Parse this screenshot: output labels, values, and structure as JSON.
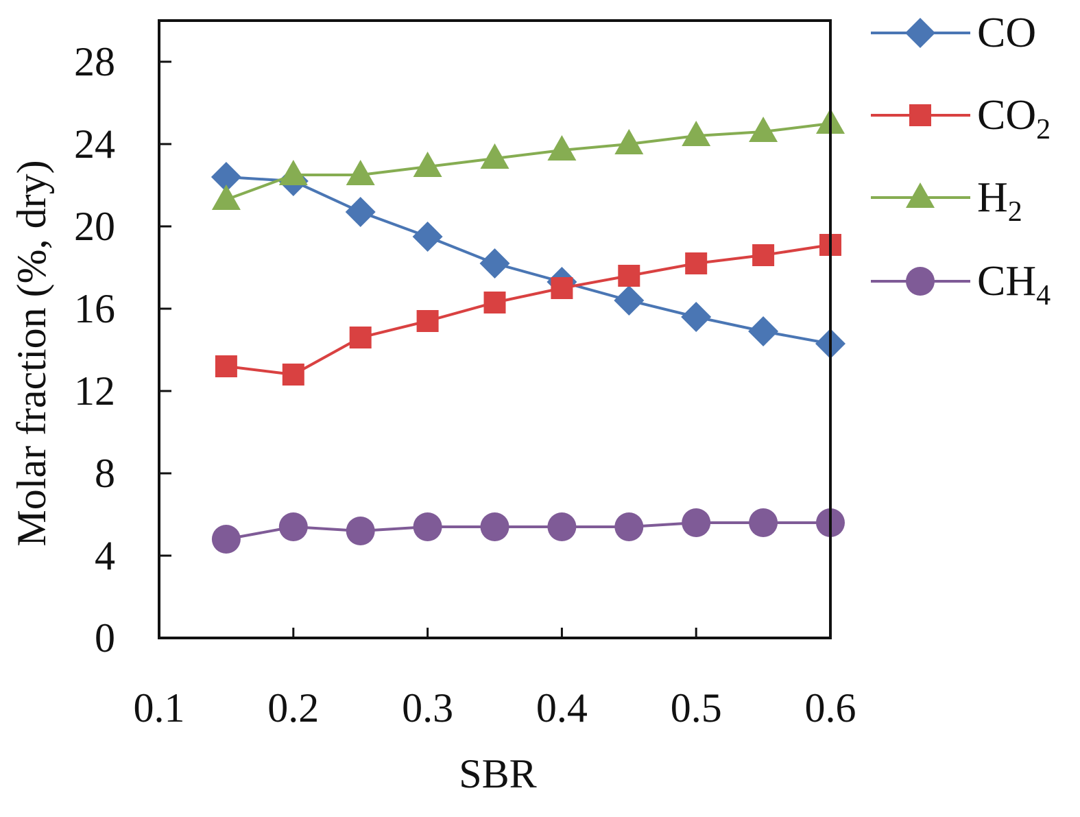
{
  "chart_data": {
    "type": "line",
    "xlabel": "SBR",
    "ylabel": "Molar fraction (%, dry)",
    "xlim": [
      0.1,
      0.6
    ],
    "ylim": [
      0,
      30
    ],
    "x_ticks": [
      "0.1",
      "0.2",
      "0.3",
      "0.4",
      "0.5",
      "0.6"
    ],
    "y_ticks": [
      "0",
      "4",
      "8",
      "12",
      "16",
      "20",
      "24",
      "28"
    ],
    "grid": false,
    "legend_position": "right",
    "x": [
      0.15,
      0.2,
      0.25,
      0.3,
      0.35,
      0.4,
      0.45,
      0.5,
      0.55,
      0.6
    ],
    "series": [
      {
        "name": "CO",
        "name_base": "CO",
        "name_sub": "",
        "color": "#4a76b4",
        "marker": "diamond",
        "values": [
          22.4,
          22.2,
          20.7,
          19.5,
          18.2,
          17.3,
          16.4,
          15.6,
          14.9,
          14.3
        ]
      },
      {
        "name": "CO2",
        "name_base": "CO",
        "name_sub": "2",
        "color": "#d94141",
        "marker": "square",
        "values": [
          13.2,
          12.8,
          14.6,
          15.4,
          16.3,
          17.0,
          17.6,
          18.2,
          18.6,
          19.1
        ]
      },
      {
        "name": "H2",
        "name_base": "H",
        "name_sub": "2",
        "color": "#86ad52",
        "marker": "triangle",
        "values": [
          21.3,
          22.5,
          22.5,
          22.9,
          23.3,
          23.7,
          24.0,
          24.4,
          24.6,
          25.0
        ]
      },
      {
        "name": "CH4",
        "name_base": "CH",
        "name_sub": "4",
        "color": "#7f5b97",
        "marker": "circle",
        "values": [
          4.8,
          5.4,
          5.2,
          5.4,
          5.4,
          5.4,
          5.4,
          5.6,
          5.6,
          5.6
        ]
      }
    ]
  }
}
